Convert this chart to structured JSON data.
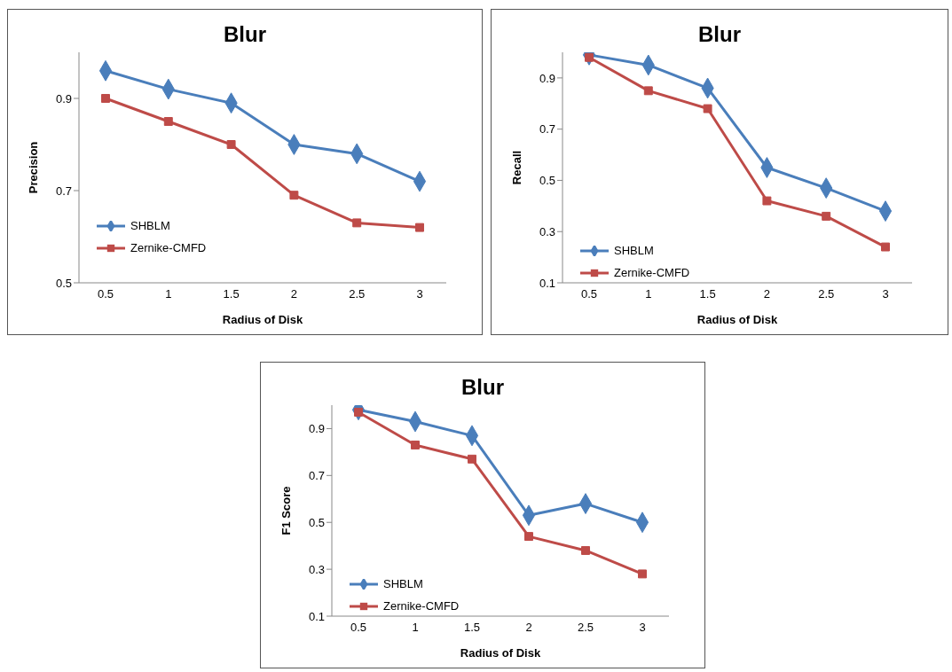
{
  "chart_data": [
    {
      "type": "line",
      "title": "Blur",
      "xlabel": "Radius of Disk",
      "ylabel": "Precision",
      "categories": [
        "0.5",
        "1",
        "1.5",
        "2",
        "2.5",
        "3"
      ],
      "ylim": [
        0.5,
        1.0
      ],
      "yticks": [
        0.5,
        0.7,
        0.9
      ],
      "grid": false,
      "legend": "bottom left",
      "series": [
        {
          "name": "SHBLM",
          "color": "#4a7ebb",
          "marker": "diamond",
          "values": [
            0.96,
            0.92,
            0.89,
            0.8,
            0.78,
            0.72
          ]
        },
        {
          "name": "Zernike-CMFD",
          "color": "#be4b48",
          "marker": "square",
          "values": [
            0.9,
            0.85,
            0.8,
            0.69,
            0.63,
            0.62
          ]
        }
      ]
    },
    {
      "type": "line",
      "title": "Blur",
      "xlabel": "Radius of Disk",
      "ylabel": "Recall",
      "categories": [
        "0.5",
        "1",
        "1.5",
        "2",
        "2.5",
        "3"
      ],
      "ylim": [
        0.1,
        1.0
      ],
      "yticks": [
        0.1,
        0.3,
        0.5,
        0.7,
        0.9
      ],
      "grid": false,
      "legend": "bottom left",
      "series": [
        {
          "name": "SHBLM",
          "color": "#4a7ebb",
          "marker": "diamond",
          "values": [
            0.99,
            0.95,
            0.86,
            0.55,
            0.47,
            0.38
          ]
        },
        {
          "name": "Zernike-CMFD",
          "color": "#be4b48",
          "marker": "square",
          "values": [
            0.98,
            0.85,
            0.78,
            0.42,
            0.36,
            0.24
          ]
        }
      ]
    },
    {
      "type": "line",
      "title": "Blur",
      "xlabel": "Radius of Disk",
      "ylabel": "F1 Score",
      "categories": [
        "0.5",
        "1",
        "1.5",
        "2",
        "2.5",
        "3"
      ],
      "ylim": [
        0.1,
        1.0
      ],
      "yticks": [
        0.1,
        0.3,
        0.5,
        0.7,
        0.9
      ],
      "grid": false,
      "legend": "bottom left",
      "series": [
        {
          "name": "SHBLM",
          "color": "#4a7ebb",
          "marker": "diamond",
          "values": [
            0.98,
            0.93,
            0.87,
            0.53,
            0.58,
            0.5
          ]
        },
        {
          "name": "Zernike-CMFD",
          "color": "#be4b48",
          "marker": "square",
          "values": [
            0.97,
            0.83,
            0.77,
            0.44,
            0.38,
            0.28
          ]
        }
      ]
    }
  ]
}
